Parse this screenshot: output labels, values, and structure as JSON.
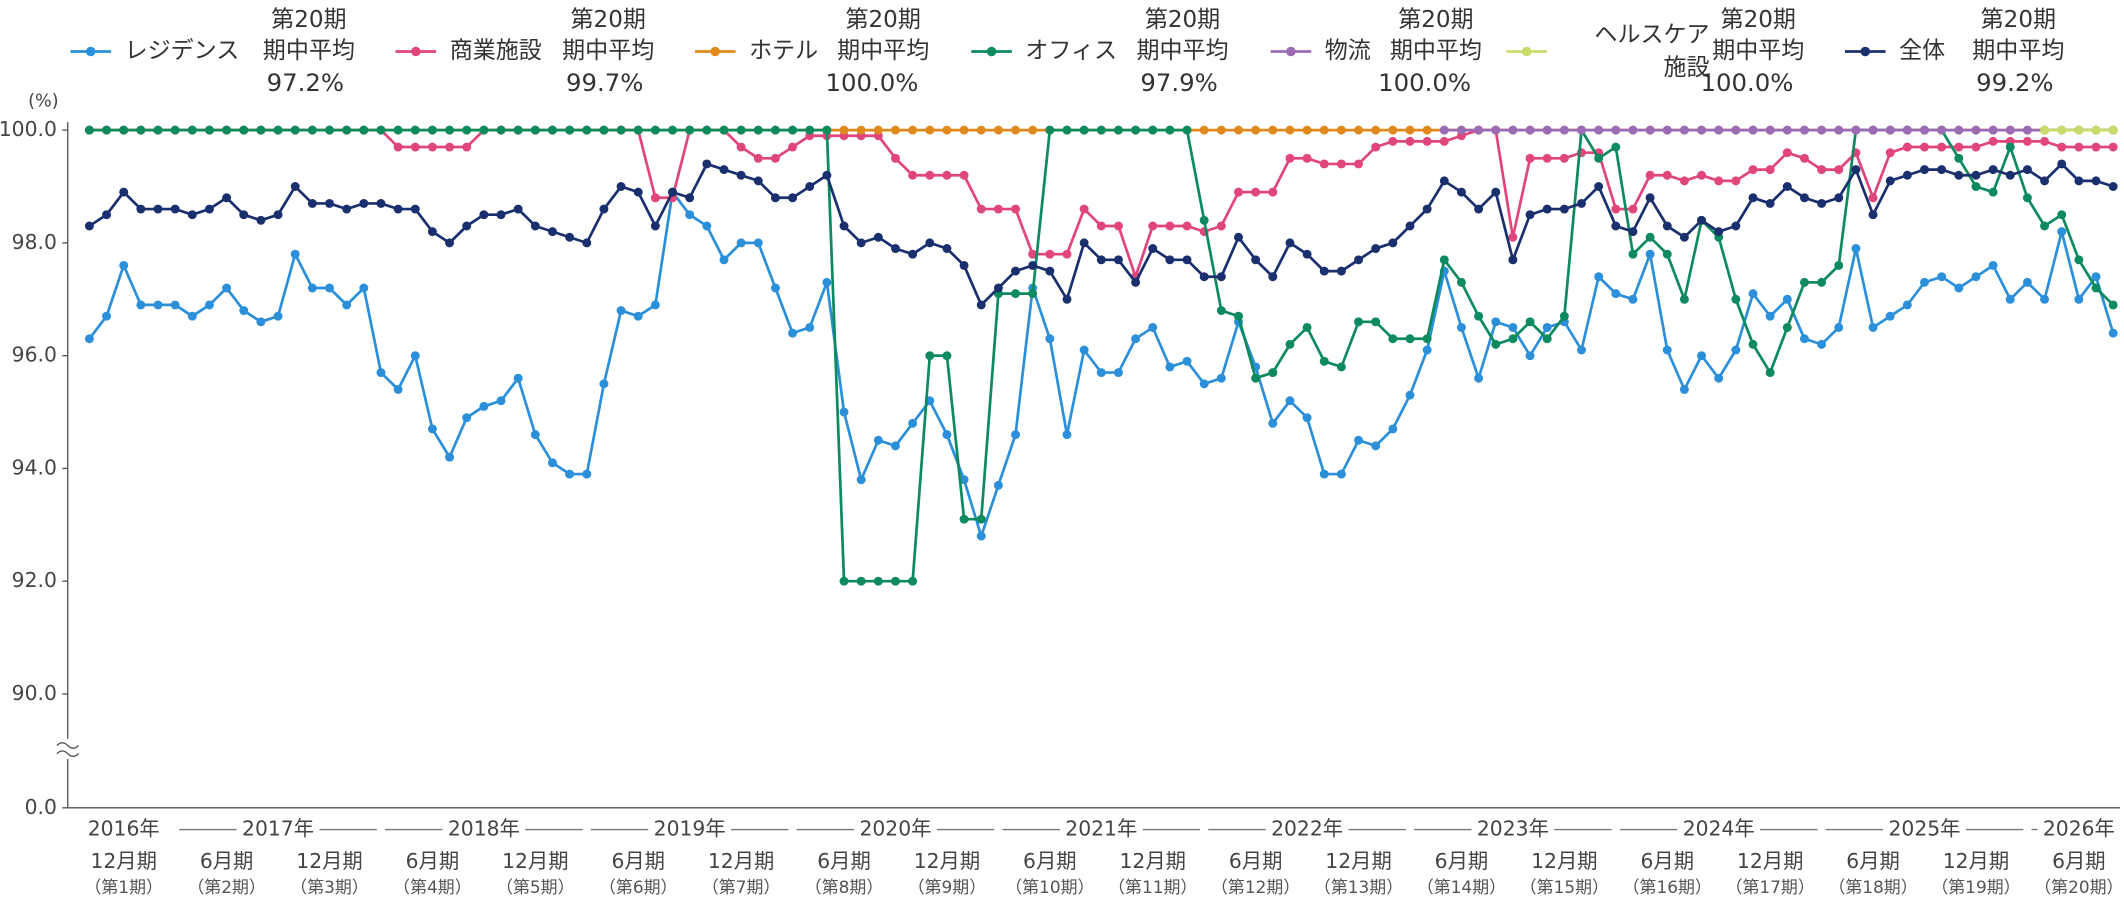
{
  "chart_data": {
    "type": "line",
    "y_unit": "(%)",
    "axis_break": true,
    "grid": false,
    "legend_heading": "第20期",
    "legend_subheading": "期中平均",
    "ylim": [
      0,
      100
    ],
    "yticks": [
      {
        "value": 0,
        "label": "0.0"
      },
      {
        "value": 90,
        "label": "90.0"
      },
      {
        "value": 92,
        "label": "92.0"
      },
      {
        "value": 94,
        "label": "94.0"
      },
      {
        "value": 96,
        "label": "96.0"
      },
      {
        "value": 98,
        "label": "98.0"
      },
      {
        "value": 100,
        "label": "100.0"
      }
    ],
    "years": [
      "2016年",
      "2017年",
      "2018年",
      "2019年",
      "2020年",
      "2021年",
      "2022年",
      "2023年",
      "2024年",
      "2025年",
      "2026年"
    ],
    "categories": [
      null,
      null,
      "12月期",
      null,
      null,
      null,
      null,
      null,
      "6月期",
      null,
      null,
      null,
      null,
      null,
      "12月期",
      null,
      null,
      null,
      null,
      null,
      "6月期",
      null,
      null,
      null,
      null,
      null,
      "12月期",
      null,
      null,
      null,
      null,
      null,
      "6月期",
      null,
      null,
      null,
      null,
      null,
      "12月期",
      null,
      null,
      null,
      null,
      null,
      "6月期",
      null,
      null,
      null,
      null,
      null,
      "12月期",
      null,
      null,
      null,
      null,
      null,
      "6月期",
      null,
      null,
      null,
      null,
      null,
      "12月期",
      null,
      null,
      null,
      null,
      null,
      "6月期",
      null,
      null,
      null,
      null,
      null,
      "12月期",
      null,
      null,
      null,
      null,
      null,
      "6月期",
      null,
      null,
      null,
      null,
      null,
      "12月期",
      null,
      null,
      null,
      null,
      null,
      "6月期",
      null,
      null,
      null,
      null,
      null,
      "12月期",
      null,
      null,
      null,
      null,
      null,
      "6月期",
      null,
      null,
      null,
      null,
      null,
      "12月期",
      null,
      null,
      null,
      null,
      null,
      "6月期",
      null,
      null
    ],
    "category_periods": [
      null,
      null,
      "（第1期）",
      null,
      null,
      null,
      null,
      null,
      "（第2期）",
      null,
      null,
      null,
      null,
      null,
      "（第3期）",
      null,
      null,
      null,
      null,
      null,
      "（第4期）",
      null,
      null,
      null,
      null,
      null,
      "（第5期）",
      null,
      null,
      null,
      null,
      null,
      "（第6期）",
      null,
      null,
      null,
      null,
      null,
      "（第7期）",
      null,
      null,
      null,
      null,
      null,
      "（第8期）",
      null,
      null,
      null,
      null,
      null,
      "（第9期）",
      null,
      null,
      null,
      null,
      null,
      "（第10期）",
      null,
      null,
      null,
      null,
      null,
      "（第11期）",
      null,
      null,
      null,
      null,
      null,
      "（第12期）",
      null,
      null,
      null,
      null,
      null,
      "（第13期）",
      null,
      null,
      null,
      null,
      null,
      "（第14期）",
      null,
      null,
      null,
      null,
      null,
      "（第15期）",
      null,
      null,
      null,
      null,
      null,
      "（第16期）",
      null,
      null,
      null,
      null,
      null,
      "（第17期）",
      null,
      null,
      null,
      null,
      null,
      "（第18期）",
      null,
      null,
      null,
      null,
      null,
      "（第19期）",
      null,
      null,
      null,
      null,
      null,
      "（第20期）",
      null,
      null
    ],
    "series": [
      {
        "name": "レジデンス",
        "color": "#2b8fd9",
        "average": 97.2,
        "average_label": "97.2%",
        "values": [
          96.3,
          96.7,
          97.6,
          96.9,
          96.9,
          96.9,
          96.7,
          96.9,
          97.2,
          96.8,
          96.6,
          96.7,
          97.8,
          97.2,
          97.2,
          96.9,
          97.2,
          95.7,
          95.4,
          96.0,
          94.7,
          94.2,
          94.9,
          95.1,
          95.2,
          95.6,
          94.6,
          94.1,
          93.9,
          93.9,
          95.5,
          96.8,
          96.7,
          96.9,
          98.9,
          98.5,
          98.3,
          97.7,
          98.0,
          98.0,
          97.2,
          96.4,
          96.5,
          97.3,
          95.0,
          93.8,
          94.5,
          94.4,
          94.8,
          95.2,
          94.6,
          93.8,
          92.8,
          93.7,
          94.6,
          97.2,
          96.3,
          94.6,
          96.1,
          95.7,
          95.7,
          96.3,
          96.5,
          95.8,
          95.9,
          95.5,
          95.6,
          96.6,
          95.8,
          94.8,
          95.2,
          94.9,
          93.9,
          93.9,
          94.5,
          94.4,
          94.7,
          95.3,
          96.1,
          97.5,
          96.5,
          95.6,
          96.6,
          96.5,
          96.0,
          96.5,
          96.6,
          96.1,
          97.4,
          97.1,
          97.0,
          97.8,
          96.1,
          95.4,
          96.0,
          95.6,
          96.1,
          97.1,
          96.7,
          97.0,
          96.3,
          96.2,
          96.5,
          97.9,
          96.5,
          96.7,
          96.9,
          97.3,
          97.4,
          97.2,
          97.4,
          97.6,
          97.0,
          97.3,
          97.0,
          98.2,
          97.0,
          97.4,
          96.4
        ]
      },
      {
        "name": "商業施設",
        "color": "#e0457b",
        "average": 99.7,
        "average_label": "99.7%",
        "values": [
          100,
          100,
          100,
          100,
          100,
          100,
          100,
          100,
          100,
          100,
          100,
          100,
          100,
          100,
          100,
          100,
          100,
          100,
          99.7,
          99.7,
          99.7,
          99.7,
          99.7,
          100,
          100,
          100,
          100,
          100,
          100,
          100,
          100,
          100,
          100,
          98.8,
          98.8,
          100,
          100,
          100,
          99.7,
          99.5,
          99.5,
          99.7,
          99.9,
          99.9,
          99.9,
          99.9,
          99.9,
          99.5,
          99.2,
          99.2,
          99.2,
          99.2,
          98.6,
          98.6,
          98.6,
          97.8,
          97.8,
          97.8,
          98.6,
          98.3,
          98.3,
          97.4,
          98.3,
          98.3,
          98.3,
          98.2,
          98.3,
          98.9,
          98.9,
          98.9,
          99.5,
          99.5,
          99.4,
          99.4,
          99.4,
          99.7,
          99.8,
          99.8,
          99.8,
          99.8,
          99.9,
          100,
          100,
          98.1,
          99.5,
          99.5,
          99.5,
          99.6,
          99.6,
          98.6,
          98.6,
          99.2,
          99.2,
          99.1,
          99.2,
          99.1,
          99.1,
          99.3,
          99.3,
          99.6,
          99.5,
          99.3,
          99.3,
          99.6,
          98.8,
          99.6,
          99.7,
          99.7,
          99.7,
          99.7,
          99.7,
          99.8,
          99.8,
          99.8,
          99.8,
          99.7,
          99.7,
          99.7,
          99.7
        ]
      },
      {
        "name": "ホテル",
        "color": "#e08a1e",
        "average": 100.0,
        "average_label": "100.0%",
        "values": [
          100,
          100,
          100,
          100,
          100,
          100,
          100,
          100,
          100,
          100,
          100,
          100,
          100,
          100,
          100,
          100,
          100,
          100,
          100,
          100,
          100,
          100,
          100,
          100,
          100,
          100,
          100,
          100,
          100,
          100,
          100,
          100,
          100,
          100,
          100,
          100,
          100,
          100,
          100,
          100,
          100,
          100,
          100,
          100,
          100,
          100,
          100,
          100,
          100,
          100,
          100,
          100,
          100,
          100,
          100,
          100,
          100,
          100,
          100,
          100,
          100,
          100,
          100,
          100,
          100,
          100,
          100,
          100,
          100,
          100,
          100,
          100,
          100,
          100,
          100,
          100,
          100,
          100,
          100,
          100,
          100,
          100,
          100,
          100,
          100,
          100,
          100,
          100,
          100,
          100,
          100,
          100,
          100,
          100,
          100,
          100,
          100,
          100,
          100,
          100,
          100,
          100,
          100,
          100,
          100,
          100,
          100,
          100,
          100,
          100,
          100,
          100,
          100,
          100,
          100,
          100,
          100,
          100,
          100
        ]
      },
      {
        "name": "オフィス",
        "color": "#0e8a5f",
        "average": 97.9,
        "average_label": "97.9%",
        "values": [
          100,
          100,
          100,
          100,
          100,
          100,
          100,
          100,
          100,
          100,
          100,
          100,
          100,
          100,
          100,
          100,
          100,
          100,
          100,
          100,
          100,
          100,
          100,
          100,
          100,
          100,
          100,
          100,
          100,
          100,
          100,
          100,
          100,
          100,
          100,
          100,
          100,
          100,
          100,
          100,
          100,
          100,
          100,
          100,
          92.0,
          92.0,
          92.0,
          92.0,
          92.0,
          96.0,
          96.0,
          93.1,
          93.1,
          97.1,
          97.1,
          97.1,
          100,
          100,
          100,
          100,
          100,
          100,
          100,
          100,
          100,
          98.4,
          96.8,
          96.7,
          95.6,
          95.7,
          96.2,
          96.5,
          95.9,
          95.8,
          96.6,
          96.6,
          96.3,
          96.3,
          96.3,
          97.7,
          97.3,
          96.7,
          96.2,
          96.3,
          96.6,
          96.3,
          96.7,
          100,
          99.5,
          99.7,
          97.8,
          98.1,
          97.8,
          97.0,
          98.4,
          98.1,
          97.0,
          96.2,
          95.7,
          96.5,
          97.3,
          97.3,
          97.6,
          100,
          100,
          100,
          100,
          100,
          100,
          99.5,
          99.0,
          98.9,
          99.7,
          98.8,
          98.3,
          98.5,
          97.7,
          97.2,
          96.9
        ]
      },
      {
        "name": "物流",
        "color": "#9b6bb5",
        "average": 100.0,
        "average_label": "100.0%",
        "values": [
          null,
          null,
          null,
          null,
          null,
          null,
          null,
          null,
          null,
          null,
          null,
          null,
          null,
          null,
          null,
          null,
          null,
          null,
          null,
          null,
          null,
          null,
          null,
          null,
          null,
          null,
          null,
          null,
          null,
          null,
          null,
          null,
          null,
          null,
          null,
          null,
          null,
          null,
          null,
          null,
          null,
          null,
          null,
          null,
          null,
          null,
          null,
          null,
          null,
          null,
          null,
          null,
          null,
          null,
          null,
          null,
          null,
          null,
          null,
          null,
          null,
          null,
          null,
          null,
          null,
          null,
          null,
          null,
          null,
          null,
          null,
          null,
          null,
          null,
          null,
          null,
          null,
          null,
          null,
          100,
          100,
          100,
          100,
          100,
          100,
          100,
          100,
          100,
          100,
          100,
          100,
          100,
          100,
          100,
          100,
          100,
          100,
          100,
          100,
          100,
          100,
          100,
          100,
          100,
          100,
          100,
          100,
          100,
          100,
          100,
          100,
          100,
          100,
          100,
          100,
          100,
          100,
          100,
          100
        ]
      },
      {
        "name": "ヘルスケア施設",
        "color": "#c8dc6a",
        "average": 100.0,
        "average_label": "100.0%",
        "values": [
          null,
          null,
          null,
          null,
          null,
          null,
          null,
          null,
          null,
          null,
          null,
          null,
          null,
          null,
          null,
          null,
          null,
          null,
          null,
          null,
          null,
          null,
          null,
          null,
          null,
          null,
          null,
          null,
          null,
          null,
          null,
          null,
          null,
          null,
          null,
          null,
          null,
          null,
          null,
          null,
          null,
          null,
          null,
          null,
          null,
          null,
          null,
          null,
          null,
          null,
          null,
          null,
          null,
          null,
          null,
          null,
          null,
          null,
          null,
          null,
          null,
          null,
          null,
          null,
          null,
          null,
          null,
          null,
          null,
          null,
          null,
          null,
          null,
          null,
          null,
          null,
          null,
          null,
          null,
          null,
          null,
          null,
          null,
          null,
          null,
          null,
          null,
          null,
          null,
          null,
          null,
          null,
          null,
          null,
          null,
          null,
          null,
          null,
          null,
          null,
          null,
          null,
          null,
          null,
          null,
          null,
          null,
          null,
          null,
          null,
          null,
          null,
          null,
          null,
          100,
          100,
          100,
          100,
          100
        ]
      },
      {
        "name": "全体",
        "color": "#1a2f6e",
        "average": 99.2,
        "average_label": "99.2%",
        "values": [
          98.3,
          98.5,
          98.9,
          98.6,
          98.6,
          98.6,
          98.5,
          98.6,
          98.8,
          98.5,
          98.4,
          98.5,
          99.0,
          98.7,
          98.7,
          98.6,
          98.7,
          98.7,
          98.6,
          98.6,
          98.2,
          98.0,
          98.3,
          98.5,
          98.5,
          98.6,
          98.3,
          98.2,
          98.1,
          98.0,
          98.6,
          99.0,
          98.9,
          98.3,
          98.9,
          98.8,
          99.4,
          99.3,
          99.2,
          99.1,
          98.8,
          98.8,
          99.0,
          99.2,
          98.3,
          98.0,
          98.1,
          97.9,
          97.8,
          98.0,
          97.9,
          97.6,
          96.9,
          97.2,
          97.5,
          97.6,
          97.5,
          97.0,
          98.0,
          97.7,
          97.7,
          97.3,
          97.9,
          97.7,
          97.7,
          97.4,
          97.4,
          98.1,
          97.7,
          97.4,
          98.0,
          97.8,
          97.5,
          97.5,
          97.7,
          97.9,
          98.0,
          98.3,
          98.6,
          99.1,
          98.9,
          98.6,
          98.9,
          97.7,
          98.5,
          98.6,
          98.6,
          98.7,
          99.0,
          98.3,
          98.2,
          98.8,
          98.3,
          98.1,
          98.4,
          98.2,
          98.3,
          98.8,
          98.7,
          99.0,
          98.8,
          98.7,
          98.8,
          99.3,
          98.5,
          99.1,
          99.2,
          99.3,
          99.3,
          99.2,
          99.2,
          99.3,
          99.2,
          99.3,
          99.1,
          99.4,
          99.1,
          99.1,
          99.0
        ]
      }
    ]
  }
}
